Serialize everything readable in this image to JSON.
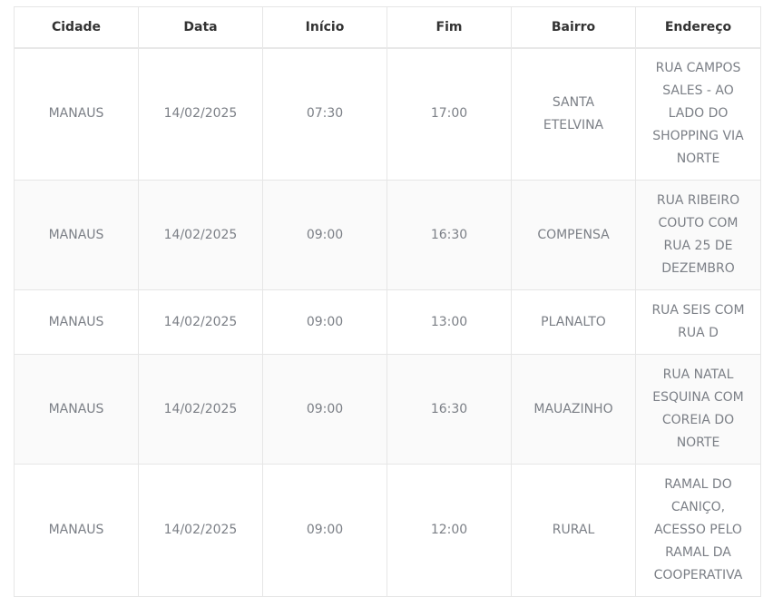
{
  "table": {
    "headers": [
      "Cidade",
      "Data",
      "Início",
      "Fim",
      "Bairro",
      "Endereço"
    ],
    "rows": [
      [
        "MANAUS",
        "14/02/2025",
        "07:30",
        "17:00",
        "SANTA ETELVINA",
        "RUA CAMPOS SALES - AO LADO DO SHOPPING VIA NORTE"
      ],
      [
        "MANAUS",
        "14/02/2025",
        "09:00",
        "16:30",
        "COMPENSA",
        "RUA RIBEIRO COUTO COM RUA 25 DE DEZEMBRO"
      ],
      [
        "MANAUS",
        "14/02/2025",
        "09:00",
        "13:00",
        "PLANALTO",
        "RUA SEIS COM RUA D"
      ],
      [
        "MANAUS",
        "14/02/2025",
        "09:00",
        "16:30",
        "MAUAZINHO",
        "RUA NATAL ESQUINA COM COREIA DO NORTE"
      ],
      [
        "MANAUS",
        "14/02/2025",
        "09:00",
        "12:00",
        "RURAL",
        "RAMAL DO CANIÇO, ACESSO PELO RAMAL DA COOPERATIVA"
      ]
    ]
  },
  "colors": {
    "header_text": "#333333",
    "cell_text": "#7b7f86",
    "border": "#e6e6e6",
    "alt_row": "#fafafa"
  }
}
